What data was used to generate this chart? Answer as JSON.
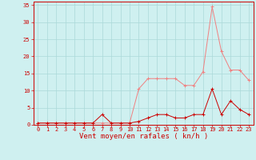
{
  "x": [
    0,
    1,
    2,
    3,
    4,
    5,
    6,
    7,
    8,
    9,
    10,
    11,
    12,
    13,
    14,
    15,
    16,
    17,
    18,
    19,
    20,
    21,
    22,
    23
  ],
  "y_rafales": [
    0.5,
    0.5,
    0.5,
    0.5,
    0.5,
    0.5,
    0.5,
    0.5,
    0.5,
    0.5,
    0.5,
    10.5,
    13.5,
    13.5,
    13.5,
    13.5,
    11.5,
    11.5,
    15.5,
    34.5,
    21.5,
    16.0,
    16.0,
    13.0
  ],
  "y_moyen": [
    0.5,
    0.5,
    0.5,
    0.5,
    0.5,
    0.5,
    0.5,
    3.0,
    0.5,
    0.5,
    0.5,
    1.0,
    2.0,
    3.0,
    3.0,
    2.0,
    2.0,
    3.0,
    3.0,
    10.5,
    3.0,
    7.0,
    4.5,
    3.0
  ],
  "color_rafales": "#f08080",
  "color_moyen": "#cc0000",
  "bg_color": "#cff0f0",
  "grid_color": "#aad8d8",
  "xlabel": "Vent moyen/en rafales ( kn/h )",
  "ylim": [
    0,
    36
  ],
  "xlim": [
    -0.5,
    23.5
  ],
  "yticks": [
    0,
    5,
    10,
    15,
    20,
    25,
    30,
    35
  ],
  "xticks": [
    0,
    1,
    2,
    3,
    4,
    5,
    6,
    7,
    8,
    9,
    10,
    11,
    12,
    13,
    14,
    15,
    16,
    17,
    18,
    19,
    20,
    21,
    22,
    23
  ],
  "tick_fontsize": 5,
  "xlabel_fontsize": 6.5,
  "linewidth": 0.7,
  "markersize": 2.5
}
